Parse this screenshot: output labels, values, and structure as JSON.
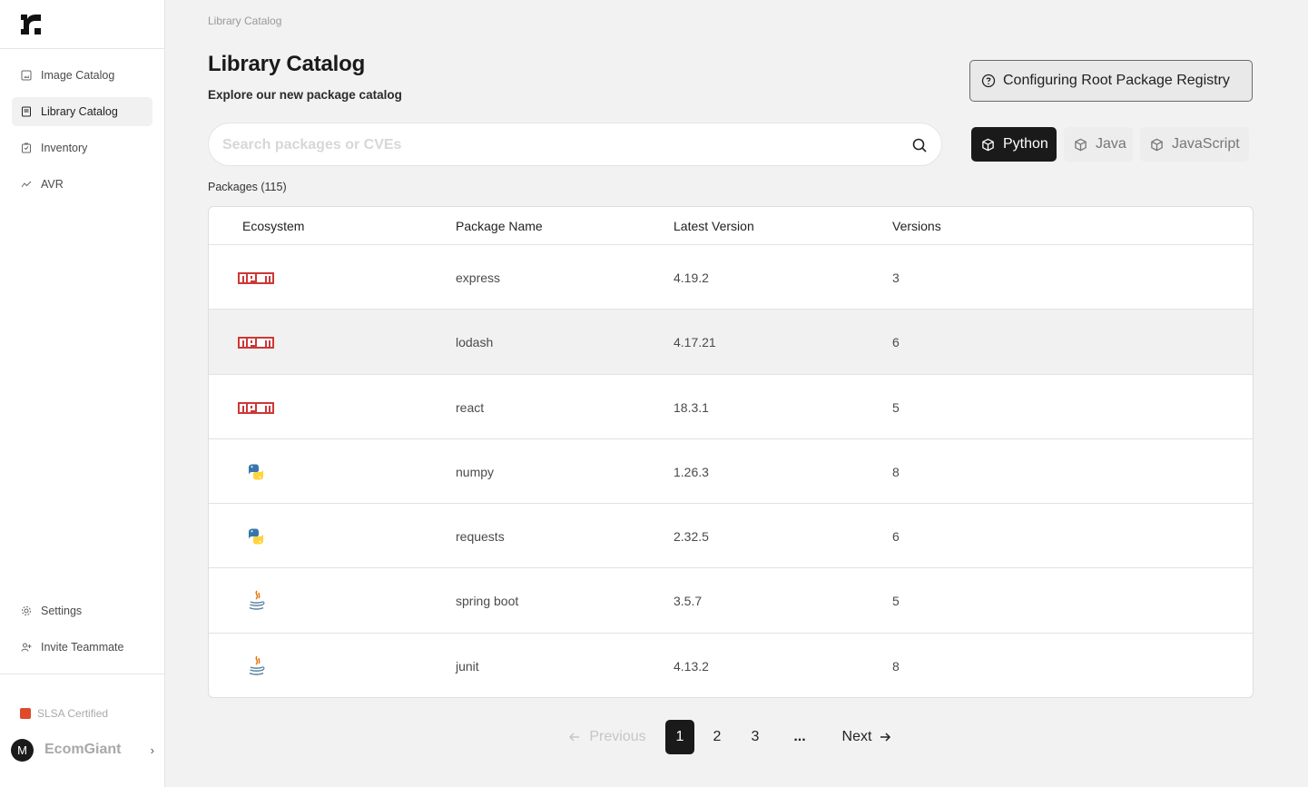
{
  "sidebar": {
    "logo_alt": "r",
    "nav": [
      {
        "label": "Image Catalog",
        "icon": "image-icon",
        "active": false
      },
      {
        "label": "Library Catalog",
        "icon": "book-icon",
        "active": true
      },
      {
        "label": "Inventory",
        "icon": "inventory-icon",
        "active": false
      },
      {
        "label": "AVR",
        "icon": "trend-icon",
        "active": false
      }
    ],
    "bottom_nav": [
      {
        "label": "Settings",
        "icon": "gear-icon"
      },
      {
        "label": "Invite Teammate",
        "icon": "user-plus-icon"
      }
    ],
    "slsa_label": "SLSA Certified",
    "org": {
      "initial": "M",
      "name": "EcomGiant",
      "chevron": "›"
    }
  },
  "header": {
    "breadcrumb": "Library Catalog",
    "title": "Library Catalog",
    "subtitle": "Explore our new package catalog",
    "config_button": "Configuring Root Package Registry"
  },
  "search": {
    "placeholder": "Search packages or CVEs",
    "value": ""
  },
  "ecosystem_tabs": [
    {
      "label": "Python",
      "selected": true
    },
    {
      "label": "Java",
      "selected": false
    },
    {
      "label": "JavaScript",
      "selected": false
    }
  ],
  "packages_count": "Packages (115)",
  "table": {
    "columns": [
      "Ecosystem",
      "Package Name",
      "Latest Version",
      "Versions"
    ],
    "rows": [
      {
        "ecosystem": "npm",
        "name": "express",
        "latest": "4.19.2",
        "versions": "3"
      },
      {
        "ecosystem": "npm",
        "name": "lodash",
        "latest": "4.17.21",
        "versions": "6"
      },
      {
        "ecosystem": "npm",
        "name": "react",
        "latest": "18.3.1",
        "versions": "5"
      },
      {
        "ecosystem": "python",
        "name": "numpy",
        "latest": "1.26.3",
        "versions": "8"
      },
      {
        "ecosystem": "python",
        "name": "requests",
        "latest": "2.32.5",
        "versions": "6"
      },
      {
        "ecosystem": "java",
        "name": "spring boot",
        "latest": "3.5.7",
        "versions": "5"
      },
      {
        "ecosystem": "java",
        "name": "junit",
        "latest": "4.13.2",
        "versions": "8"
      }
    ]
  },
  "pagination": {
    "previous": "Previous",
    "next": "Next",
    "pages": [
      "1",
      "2",
      "3"
    ],
    "current": "1",
    "ellipsis": "..."
  },
  "colors": {
    "accent": "#1a1a1a",
    "npm": "#cb3837",
    "python_blue": "#3776ab",
    "python_yellow": "#ffd43b",
    "java_red": "#e76f00",
    "java_blue": "#5382a1",
    "slsa": "#e04a2a"
  }
}
